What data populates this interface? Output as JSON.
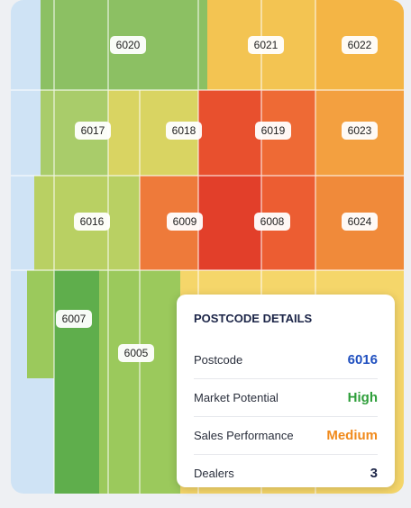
{
  "map": {
    "labels": [
      "6020",
      "6021",
      "6022",
      "6017",
      "6018",
      "6019",
      "6023",
      "6016",
      "6009",
      "6008",
      "6024",
      "6007",
      "6005"
    ]
  },
  "details": {
    "title": "POSTCODE DETAILS",
    "rows": [
      {
        "label": "Postcode",
        "value": "6016"
      },
      {
        "label": "Market Potential",
        "value": "High"
      },
      {
        "label": "Sales Performance",
        "value": "Medium"
      },
      {
        "label": "Dealers",
        "value": 3
      }
    ]
  }
}
